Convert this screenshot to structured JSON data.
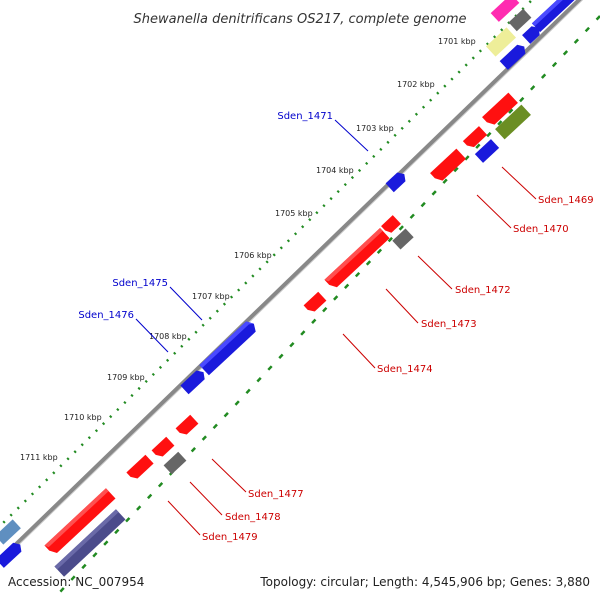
{
  "title": "Shewanella denitrificans OS217, complete genome",
  "ticks": [
    "1701 kbp",
    "1702 kbp",
    "1703 kbp",
    "1704 kbp",
    "1705 kbp",
    "1706 kbp",
    "1707 kbp",
    "1708 kbp",
    "1709 kbp",
    "1710 kbp",
    "1711 kbp"
  ],
  "gene_labels_upper": [
    "Sden_1471",
    "Sden_1475",
    "Sden_1476"
  ],
  "gene_labels_lower": [
    "Sden_1469",
    "Sden_1470",
    "Sden_1472",
    "Sden_1473",
    "Sden_1474",
    "Sden_1477",
    "Sden_1478",
    "Sden_1479"
  ],
  "footer": {
    "accession": "Accession: NC_007954",
    "summary": "Topology: circular; Length: 4,545,906 bp; Genes: 3,880"
  },
  "colors": {
    "forward": "#0000ff",
    "reverse": "#ff0000",
    "rna": "#666666",
    "backbone": "#808080",
    "tick": "#228b22",
    "upper_label": "#0000cc",
    "lower_label": "#cc0000"
  }
}
